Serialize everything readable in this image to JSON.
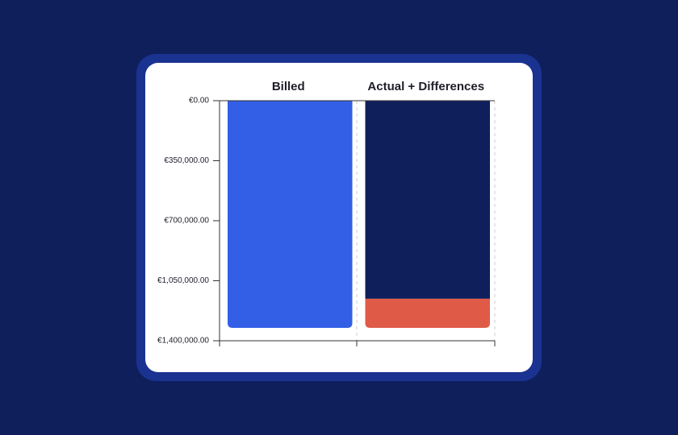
{
  "chart_data": {
    "type": "stacked-bar",
    "categories": [
      "Billed",
      "Actual + Differences"
    ],
    "series": [
      {
        "colors": [
          "#335fe6",
          "#0f1f5c"
        ],
        "values": [
          1325000,
          1155000
        ]
      },
      {
        "color": "#e05a48",
        "values": [
          null,
          170000
        ]
      }
    ],
    "ylim": [
      0,
      1400000
    ],
    "y_inverted": true,
    "yticks": [
      {
        "value": 0,
        "label": "€0.00"
      },
      {
        "value": 350000,
        "label": "€350,000.00"
      },
      {
        "value": 700000,
        "label": "€700,000.00"
      },
      {
        "value": 1050000,
        "label": "€1,050,000.00"
      },
      {
        "value": 1400000,
        "label": "€1,400,000.00"
      }
    ]
  }
}
